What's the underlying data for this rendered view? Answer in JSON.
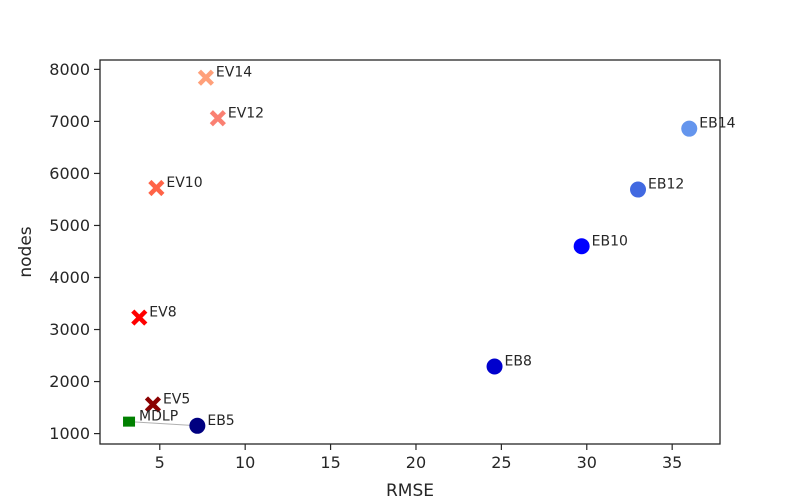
{
  "chart_data": {
    "type": "scatter",
    "title": "",
    "xlabel": "RMSE",
    "ylabel": "nodes",
    "xlim": [
      1.5,
      37.8
    ],
    "ylim": [
      800,
      8180
    ],
    "x_ticks": [
      5,
      10,
      15,
      20,
      25,
      30,
      35
    ],
    "y_ticks": [
      1000,
      2000,
      3000,
      4000,
      5000,
      6000,
      7000,
      8000
    ],
    "grid": false,
    "legend": "none",
    "points": [
      {
        "label": "EV14",
        "x": 7.7,
        "y": 7840,
        "marker": "x",
        "color": "#ffa07a"
      },
      {
        "label": "EV12",
        "x": 8.4,
        "y": 7060,
        "marker": "x",
        "color": "#fa8072"
      },
      {
        "label": "EV10",
        "x": 4.8,
        "y": 5720,
        "marker": "x",
        "color": "#ff6347"
      },
      {
        "label": "EV8",
        "x": 3.8,
        "y": 3230,
        "marker": "x",
        "color": "#ff0000"
      },
      {
        "label": "EV5",
        "x": 4.6,
        "y": 1560,
        "marker": "x",
        "color": "#8b0000"
      },
      {
        "label": "MDLP",
        "x": 3.2,
        "y": 1230,
        "marker": "square",
        "color": "#008000"
      },
      {
        "label": "EB5",
        "x": 7.2,
        "y": 1150,
        "marker": "circle",
        "color": "#000080"
      },
      {
        "label": "EB8",
        "x": 24.6,
        "y": 2290,
        "marker": "circle",
        "color": "#0000cd"
      },
      {
        "label": "EB10",
        "x": 29.7,
        "y": 4600,
        "marker": "circle",
        "color": "#0000ff"
      },
      {
        "label": "EB12",
        "x": 33.0,
        "y": 5690,
        "marker": "circle",
        "color": "#4169e1"
      },
      {
        "label": "EB14",
        "x": 36.0,
        "y": 6860,
        "marker": "circle",
        "color": "#6495ed"
      }
    ],
    "connectors": [
      {
        "from": "MDLP",
        "to": "EB5",
        "color": "#b0b0b0"
      }
    ]
  }
}
